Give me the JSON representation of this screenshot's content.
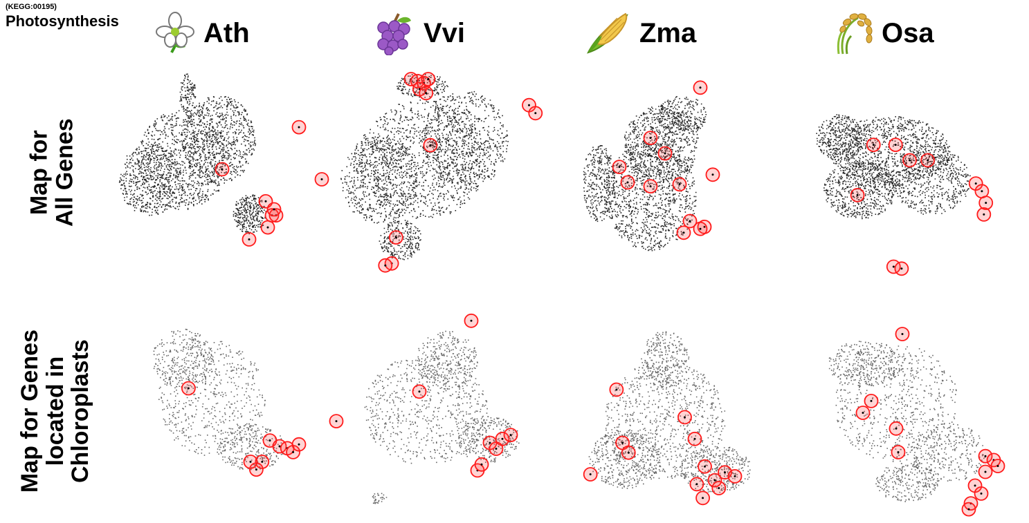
{
  "header": {
    "kegg_id": "(KEGG:00195)",
    "pathway": "Photosynthesis"
  },
  "species": [
    {
      "code": "Ath",
      "icon": "white-flower-icon"
    },
    {
      "code": "Vvi",
      "icon": "grapes-icon"
    },
    {
      "code": "Zma",
      "icon": "corn-icon"
    },
    {
      "code": "Osa",
      "icon": "rice-icon"
    }
  ],
  "rows": [
    {
      "label_lines": [
        "Map for",
        "All Genes"
      ]
    },
    {
      "label_lines": [
        "Map for Genes",
        "located in",
        "Chloroplasts"
      ]
    }
  ],
  "colors": {
    "gene_points": "#000000",
    "highlight": "#ff1a1a",
    "highlight_fill": "rgba(255,60,60,0.22)"
  },
  "chart_data": {
    "type": "scatter",
    "description_note": "",
    "panels": [
      {
        "row": 0,
        "species": "Ath",
        "highlighted_genes": [
          [
            0.94,
            0.29
          ],
          [
            0.57,
            0.5
          ],
          [
            0.78,
            0.66
          ],
          [
            0.81,
            0.73
          ],
          [
            0.83,
            0.73
          ],
          [
            0.79,
            0.79
          ],
          [
            0.7,
            0.85
          ],
          [
            1.05,
            0.55
          ],
          [
            0.82,
            0.7
          ]
        ]
      },
      {
        "row": 0,
        "species": "Vvi",
        "highlighted_genes": [
          [
            0.4,
            0.05
          ],
          [
            0.43,
            0.06
          ],
          [
            0.46,
            0.07
          ],
          [
            0.48,
            0.05
          ],
          [
            0.44,
            0.1
          ],
          [
            0.47,
            0.12
          ],
          [
            0.95,
            0.18
          ],
          [
            0.98,
            0.22
          ],
          [
            0.49,
            0.38
          ],
          [
            0.33,
            0.84
          ],
          [
            0.31,
            0.97
          ],
          [
            0.28,
            0.98
          ]
        ]
      },
      {
        "row": 0,
        "species": "Zma",
        "highlighted_genes": [
          [
            0.64,
            0.06
          ],
          [
            0.4,
            0.32
          ],
          [
            0.47,
            0.4
          ],
          [
            0.25,
            0.47
          ],
          [
            0.29,
            0.55
          ],
          [
            0.4,
            0.57
          ],
          [
            0.54,
            0.56
          ],
          [
            0.7,
            0.51
          ],
          [
            0.59,
            0.75
          ],
          [
            0.66,
            0.78
          ],
          [
            0.56,
            0.81
          ],
          [
            0.64,
            0.79
          ]
        ]
      },
      {
        "row": 0,
        "species": "Osa",
        "highlighted_genes": [
          [
            0.37,
            0.32
          ],
          [
            0.48,
            0.32
          ],
          [
            0.55,
            0.4
          ],
          [
            0.64,
            0.4
          ],
          [
            0.88,
            0.52
          ],
          [
            0.91,
            0.56
          ],
          [
            0.93,
            0.62
          ],
          [
            0.92,
            0.68
          ],
          [
            0.29,
            0.58
          ],
          [
            0.47,
            0.95
          ],
          [
            0.51,
            0.96
          ]
        ]
      },
      {
        "row": 1,
        "species": "Ath",
        "highlighted_genes": [
          [
            0.33,
            0.4
          ],
          [
            0.75,
            0.67
          ],
          [
            0.8,
            0.7
          ],
          [
            0.84,
            0.71
          ],
          [
            0.87,
            0.73
          ],
          [
            0.71,
            0.78
          ],
          [
            0.68,
            0.82
          ],
          [
            0.65,
            0.78
          ],
          [
            0.9,
            0.69
          ]
        ]
      },
      {
        "row": 1,
        "species": "Vvi",
        "highlighted_genes": [
          [
            0.67,
            0.05
          ],
          [
            0.42,
            0.41
          ],
          [
            0.02,
            0.56
          ],
          [
            0.76,
            0.67
          ],
          [
            0.82,
            0.65
          ],
          [
            0.86,
            0.63
          ],
          [
            0.79,
            0.7
          ],
          [
            0.7,
            0.81
          ],
          [
            0.72,
            0.78
          ]
        ]
      },
      {
        "row": 1,
        "species": "Zma",
        "highlighted_genes": [
          [
            0.21,
            0.4
          ],
          [
            0.55,
            0.54
          ],
          [
            0.6,
            0.65
          ],
          [
            0.24,
            0.67
          ],
          [
            0.27,
            0.72
          ],
          [
            0.08,
            0.83
          ],
          [
            0.65,
            0.79
          ],
          [
            0.75,
            0.82
          ],
          [
            0.8,
            0.84
          ],
          [
            0.7,
            0.86
          ],
          [
            0.61,
            0.88
          ],
          [
            0.72,
            0.9
          ],
          [
            0.64,
            0.95
          ]
        ]
      },
      {
        "row": 1,
        "species": "Osa",
        "highlighted_genes": [
          [
            0.48,
            0.1
          ],
          [
            0.33,
            0.44
          ],
          [
            0.29,
            0.5
          ],
          [
            0.45,
            0.58
          ],
          [
            0.46,
            0.7
          ],
          [
            0.88,
            0.72
          ],
          [
            0.92,
            0.74
          ],
          [
            0.94,
            0.77
          ],
          [
            0.88,
            0.8
          ],
          [
            0.83,
            0.87
          ],
          [
            0.86,
            0.91
          ],
          [
            0.81,
            0.96
          ],
          [
            0.8,
            0.99
          ]
        ]
      }
    ]
  }
}
